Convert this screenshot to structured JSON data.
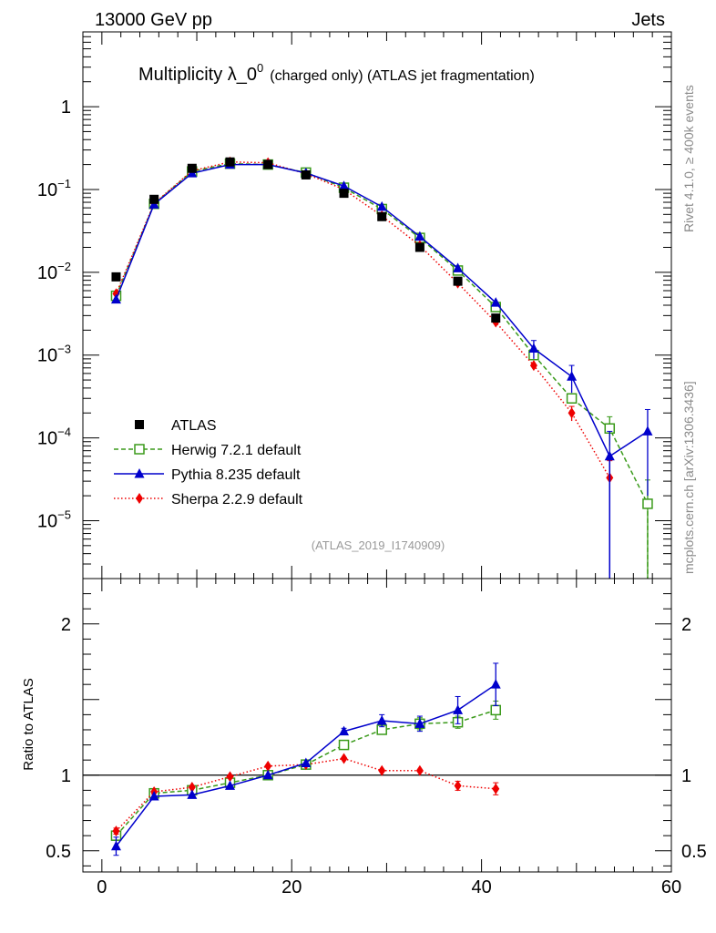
{
  "header": {
    "left": "13000 GeV pp",
    "right": "Jets"
  },
  "side_labels": {
    "top": "Rivet 4.1.0, ≥ 400k events",
    "bottom": "mcplots.cern.ch [arXiv:1306.3436]"
  },
  "colors": {
    "atlas": "#000000",
    "herwig": "#3a9a1a",
    "pythia": "#0000cc",
    "sherpa": "#ee0000"
  },
  "chart_data": [
    {
      "type": "scatter",
      "panel": "main",
      "title": "Multiplicity λ_0",
      "title_sup": "0",
      "subtitle": "(charged only) (ATLAS jet fragmentation)",
      "watermark": "(ATLAS_2019_I1740909)",
      "yscale": "log",
      "xlim": [
        -2,
        60
      ],
      "ylim": [
        2e-06,
        8
      ],
      "ytick_labels": [
        {
          "value": 1,
          "base": "1",
          "exp": ""
        },
        {
          "value": 0.1,
          "base": "10",
          "exp": "−1"
        },
        {
          "value": 0.01,
          "base": "10",
          "exp": "−2"
        },
        {
          "value": 0.001,
          "base": "10",
          "exp": "−3"
        },
        {
          "value": 0.0001,
          "base": "10",
          "exp": "−4"
        },
        {
          "value": 1e-05,
          "base": "10",
          "exp": "−5"
        }
      ],
      "legend_position": "bottom-left",
      "series": [
        {
          "name": "ATLAS",
          "style": "data",
          "color_key": "atlas",
          "x": [
            1.5,
            5.5,
            9.5,
            13.5,
            17.5,
            21.5,
            25.5,
            29.5,
            33.5,
            37.5,
            41.5
          ],
          "y": [
            0.0088,
            0.076,
            0.18,
            0.215,
            0.2,
            0.15,
            0.09,
            0.047,
            0.02,
            0.0078,
            0.0028
          ]
        },
        {
          "name": "Herwig 7.2.1 default",
          "style": "dashed",
          "color_key": "herwig",
          "x": [
            1.5,
            5.5,
            9.5,
            13.5,
            17.5,
            21.5,
            25.5,
            29.5,
            33.5,
            37.5,
            41.5,
            45.5,
            49.5,
            53.5,
            57.5
          ],
          "y": [
            0.0052,
            0.067,
            0.165,
            0.205,
            0.2,
            0.16,
            0.105,
            0.058,
            0.026,
            0.0105,
            0.0038,
            0.001,
            0.0003,
            0.00013,
            1.6e-05
          ],
          "yerr": [
            0,
            0,
            0,
            0,
            0,
            0,
            0,
            0,
            0,
            0,
            0,
            0,
            4e-05,
            5e-05,
            1.5e-05
          ]
        },
        {
          "name": "Pythia 8.235 default",
          "style": "solid",
          "color_key": "pythia",
          "x": [
            1.5,
            5.5,
            9.5,
            13.5,
            17.5,
            21.5,
            25.5,
            29.5,
            33.5,
            37.5,
            41.5,
            45.5,
            49.5,
            53.5,
            57.5
          ],
          "y": [
            0.0047,
            0.066,
            0.157,
            0.2,
            0.2,
            0.158,
            0.11,
            0.062,
            0.027,
            0.0112,
            0.0043,
            0.0012,
            0.00055,
            6e-05,
            0.00012
          ],
          "yerr": [
            0,
            0,
            0,
            0,
            0,
            0,
            0,
            0,
            0,
            0,
            0,
            0.0003,
            0.0002,
            6e-05,
            0.0001
          ]
        },
        {
          "name": "Sherpa 2.2.9 default",
          "style": "dotted",
          "color_key": "sherpa",
          "x": [
            1.5,
            5.5,
            9.5,
            13.5,
            17.5,
            21.5,
            25.5,
            29.5,
            33.5,
            37.5,
            41.5,
            45.5,
            49.5,
            53.5
          ],
          "y": [
            0.0055,
            0.068,
            0.168,
            0.215,
            0.21,
            0.155,
            0.1,
            0.048,
            0.021,
            0.0074,
            0.0025,
            0.00075,
            0.0002,
            3.3e-05
          ],
          "yerr": [
            0,
            0,
            0,
            0,
            0,
            0,
            0,
            0,
            0,
            0,
            0,
            0,
            4e-05,
            2e-05
          ]
        }
      ]
    },
    {
      "type": "scatter",
      "panel": "ratio",
      "ylabel": "Ratio to ATLAS",
      "xlim": [
        -2,
        60
      ],
      "ylim": [
        0.36,
        2.3
      ],
      "reference_line": 1,
      "xtick_labels": [
        "0",
        "20",
        "40",
        "60"
      ],
      "xtick_values": [
        0,
        20,
        40,
        60
      ],
      "ytick_labels": [
        "0.5",
        "1",
        "2"
      ],
      "ytick_values": [
        0.5,
        1,
        2
      ],
      "series": [
        {
          "name": "Herwig 7.2.1 default",
          "style": "dashed",
          "color_key": "herwig",
          "x": [
            1.5,
            5.5,
            9.5,
            13.5,
            17.5,
            21.5,
            25.5,
            29.5,
            33.5,
            37.5,
            41.5
          ],
          "y": [
            0.6,
            0.88,
            0.9,
            0.95,
            1.0,
            1.07,
            1.2,
            1.3,
            1.34,
            1.35,
            1.43
          ],
          "yerr": [
            0.03,
            0,
            0,
            0,
            0,
            0,
            0.02,
            0.02,
            0.04,
            0.04,
            0.06
          ]
        },
        {
          "name": "Pythia 8.235 default",
          "style": "solid",
          "color_key": "pythia",
          "x": [
            1.5,
            5.5,
            9.5,
            13.5,
            17.5,
            21.5,
            25.5,
            29.5,
            33.5,
            37.5,
            41.5
          ],
          "y": [
            0.53,
            0.86,
            0.87,
            0.93,
            1.0,
            1.08,
            1.29,
            1.36,
            1.34,
            1.43,
            1.6
          ],
          "yerr": [
            0.06,
            0,
            0,
            0,
            0,
            0,
            0.02,
            0.04,
            0.05,
            0.09,
            0.14
          ]
        },
        {
          "name": "Sherpa 2.2.9 default",
          "style": "dotted",
          "color_key": "sherpa",
          "x": [
            1.5,
            5.5,
            9.5,
            13.5,
            17.5,
            21.5,
            25.5,
            29.5,
            33.5,
            37.5,
            41.5
          ],
          "y": [
            0.63,
            0.89,
            0.92,
            0.99,
            1.06,
            1.07,
            1.11,
            1.03,
            1.03,
            0.93,
            0.91
          ],
          "yerr": [
            0.02,
            0,
            0,
            0,
            0,
            0,
            0,
            0,
            0,
            0.03,
            0.04
          ]
        }
      ]
    }
  ]
}
